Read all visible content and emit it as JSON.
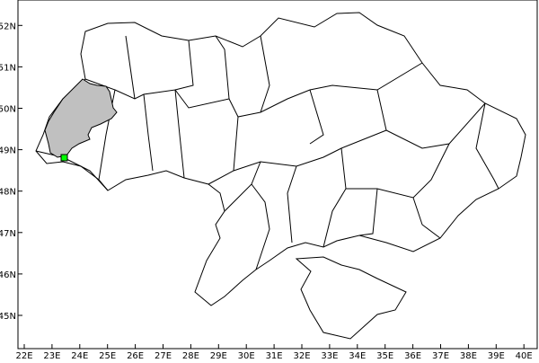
{
  "map": {
    "x_ticks": [
      "22E",
      "23E",
      "24E",
      "25E",
      "26E",
      "27E",
      "28E",
      "29E",
      "30E",
      "31E",
      "32E",
      "33E",
      "34E",
      "35E",
      "36E",
      "37E",
      "38E",
      "39E",
      "40E"
    ],
    "y_ticks": [
      "45N",
      "46N",
      "47N",
      "48N",
      "49N",
      "50N",
      "51N",
      "52N"
    ],
    "highlighted_region_color": "#c0c0c0",
    "marker_color": "#00ff00",
    "border_color": "#000000"
  }
}
